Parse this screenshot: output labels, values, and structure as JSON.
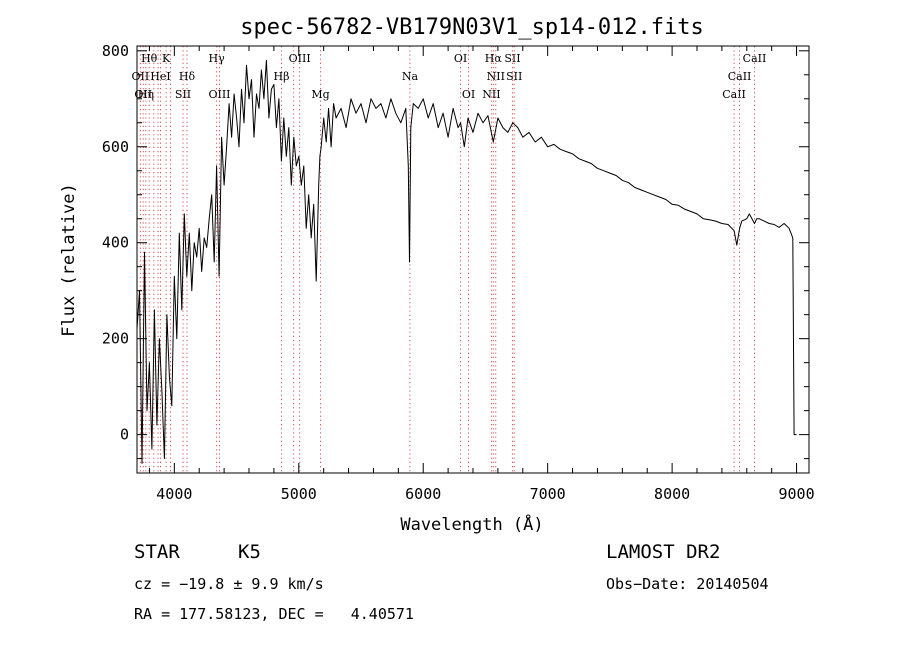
{
  "chart_data": {
    "type": "line",
    "title": "spec-56782-VB179N03V1_sp14-012.fits",
    "xlabel": "Wavelength (Å)",
    "ylabel": "Flux (relative)",
    "xlim": [
      3700,
      9100
    ],
    "ylim": [
      -80,
      810
    ],
    "xticks": [
      4000,
      5000,
      6000,
      7000,
      8000,
      9000
    ],
    "yticks": [
      0,
      200,
      400,
      600,
      800
    ],
    "grid": false,
    "series": [
      {
        "color": "#000000",
        "x": [
          3700,
          3720,
          3740,
          3760,
          3780,
          3800,
          3820,
          3840,
          3860,
          3880,
          3900,
          3920,
          3940,
          3960,
          3980,
          4000,
          4020,
          4040,
          4060,
          4080,
          4100,
          4120,
          4140,
          4160,
          4180,
          4200,
          4220,
          4240,
          4260,
          4280,
          4300,
          4320,
          4340,
          4360,
          4380,
          4400,
          4420,
          4440,
          4460,
          4480,
          4500,
          4520,
          4540,
          4560,
          4580,
          4600,
          4620,
          4640,
          4660,
          4680,
          4700,
          4720,
          4740,
          4760,
          4780,
          4800,
          4820,
          4840,
          4860,
          4880,
          4900,
          4920,
          4940,
          4960,
          4980,
          5000,
          5020,
          5040,
          5060,
          5080,
          5100,
          5120,
          5140,
          5160,
          5170,
          5180,
          5200,
          5220,
          5240,
          5260,
          5280,
          5300,
          5340,
          5380,
          5420,
          5460,
          5500,
          5540,
          5580,
          5620,
          5660,
          5700,
          5740,
          5780,
          5820,
          5860,
          5880,
          5890,
          5900,
          5920,
          5960,
          6000,
          6040,
          6080,
          6120,
          6160,
          6200,
          6240,
          6280,
          6300,
          6330,
          6360,
          6400,
          6440,
          6480,
          6520,
          6563,
          6600,
          6640,
          6680,
          6720,
          6760,
          6800,
          6850,
          6900,
          6950,
          7000,
          7050,
          7100,
          7150,
          7200,
          7250,
          7300,
          7350,
          7400,
          7450,
          7500,
          7550,
          7600,
          7650,
          7700,
          7750,
          7800,
          7850,
          7900,
          7950,
          8000,
          8050,
          8100,
          8150,
          8200,
          8250,
          8300,
          8350,
          8400,
          8450,
          8498,
          8520,
          8542,
          8560,
          8600,
          8620,
          8662,
          8680,
          8700,
          8740,
          8780,
          8820,
          8860,
          8900,
          8940,
          8970,
          8980,
          8990,
          9000
        ],
        "y": [
          220,
          300,
          -60,
          380,
          50,
          150,
          -30,
          260,
          20,
          200,
          90,
          -50,
          250,
          120,
          60,
          330,
          200,
          420,
          260,
          460,
          330,
          420,
          300,
          400,
          370,
          430,
          340,
          410,
          390,
          450,
          500,
          360,
          560,
          330,
          620,
          520,
          600,
          690,
          620,
          710,
          660,
          600,
          720,
          650,
          770,
          700,
          740,
          620,
          710,
          680,
          760,
          700,
          780,
          660,
          720,
          730,
          640,
          700,
          570,
          660,
          580,
          640,
          520,
          620,
          560,
          580,
          520,
          560,
          430,
          500,
          410,
          480,
          320,
          520,
          580,
          600,
          660,
          610,
          680,
          600,
          690,
          660,
          680,
          640,
          700,
          670,
          690,
          650,
          700,
          680,
          690,
          660,
          700,
          670,
          650,
          680,
          560,
          360,
          640,
          690,
          680,
          700,
          660,
          690,
          640,
          670,
          620,
          680,
          640,
          650,
          600,
          660,
          630,
          670,
          650,
          665,
          610,
          660,
          640,
          630,
          650,
          640,
          620,
          630,
          610,
          620,
          600,
          605,
          595,
          590,
          585,
          575,
          570,
          565,
          555,
          550,
          545,
          540,
          530,
          525,
          515,
          510,
          505,
          500,
          495,
          490,
          480,
          478,
          470,
          465,
          460,
          450,
          448,
          445,
          440,
          438,
          425,
          395,
          430,
          445,
          450,
          460,
          440,
          450,
          450,
          445,
          440,
          438,
          432,
          440,
          430,
          410,
          0,
          0,
          0
        ]
      }
    ],
    "line_markers": [
      {
        "wavelength": 3727,
        "label": "OII",
        "row": 2
      },
      {
        "wavelength": 3750,
        "label": "OII",
        "row": 3
      },
      {
        "wavelength": 3771,
        "label": "Hη",
        "row": 3
      },
      {
        "wavelength": 3798,
        "label": "Hθ",
        "row": 1
      },
      {
        "wavelength": 3835,
        "label": "",
        "row": 0
      },
      {
        "wavelength": 3869,
        "label": "",
        "row": 0
      },
      {
        "wavelength": 3889,
        "label": "HeI",
        "row": 2
      },
      {
        "wavelength": 3934,
        "label": "K",
        "row": 1
      },
      {
        "wavelength": 3969,
        "label": "",
        "row": 0
      },
      {
        "wavelength": 4070,
        "label": "SII",
        "row": 3
      },
      {
        "wavelength": 4102,
        "label": "Hδ",
        "row": 2
      },
      {
        "wavelength": 4340,
        "label": "Hγ",
        "row": 1
      },
      {
        "wavelength": 4363,
        "label": "OIII",
        "row": 3
      },
      {
        "wavelength": 4861,
        "label": "Hβ",
        "row": 2
      },
      {
        "wavelength": 4959,
        "label": "",
        "row": 0
      },
      {
        "wavelength": 5007,
        "label": "OIII",
        "row": 1
      },
      {
        "wavelength": 5175,
        "label": "Mg",
        "row": 3
      },
      {
        "wavelength": 5893,
        "label": "Na",
        "row": 2
      },
      {
        "wavelength": 6300,
        "label": "OI",
        "row": 1
      },
      {
        "wavelength": 6364,
        "label": "OI",
        "row": 3
      },
      {
        "wavelength": 6548,
        "label": "NII",
        "row": 3
      },
      {
        "wavelength": 6563,
        "label": "Hα",
        "row": 1
      },
      {
        "wavelength": 6583,
        "label": "NII",
        "row": 2
      },
      {
        "wavelength": 6717,
        "label": "SII",
        "row": 1
      },
      {
        "wavelength": 6731,
        "label": "SII",
        "row": 2
      },
      {
        "wavelength": 8498,
        "label": "CaII",
        "row": 3
      },
      {
        "wavelength": 8542,
        "label": "CaII",
        "row": 2
      },
      {
        "wavelength": 8662,
        "label": "CaII",
        "row": 1
      }
    ]
  },
  "info": {
    "obj_class": "STAR",
    "subclass": "K5",
    "survey": "LAMOST DR2",
    "cz": "cz = −19.8 ± 9.9 km/s",
    "obs_date": "Obs−Date: 20140504",
    "coords": "RA = 177.58123, DEC =   4.40571"
  },
  "colors": {
    "spectrum": "#000000",
    "marker": "#d84a4a"
  }
}
